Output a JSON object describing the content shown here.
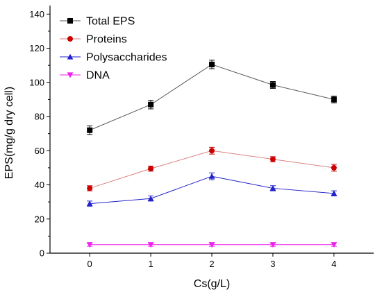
{
  "chart_data": {
    "type": "line",
    "xlabel": "Cs(g/L)",
    "ylabel": "EPS(mg/g dry cell)",
    "x": [
      0,
      1,
      2,
      3,
      4
    ],
    "xlim": [
      -0.65,
      4.65
    ],
    "ylim": [
      0,
      145
    ],
    "xticks": [
      "0",
      "1",
      "2",
      "3",
      "4"
    ],
    "yticks": [
      "0",
      "20",
      "40",
      "60",
      "80",
      "100",
      "120",
      "140"
    ],
    "grid": false,
    "legend_position": "top-left",
    "series": [
      {
        "name": "Total EPS",
        "color": "#000000",
        "line_color": "#5a5a5a",
        "marker": "square",
        "values": [
          72,
          87,
          110.5,
          98.5,
          90
        ],
        "errors": [
          2.5,
          2.5,
          2.5,
          2,
          2
        ]
      },
      {
        "name": "Proteins",
        "color": "#cc0000",
        "line_color": "#d88080",
        "marker": "circle",
        "values": [
          38,
          49.5,
          60,
          55,
          50
        ],
        "errors": [
          1.5,
          1.5,
          2,
          1.5,
          2
        ]
      },
      {
        "name": "Polysaccharides",
        "color": "#2222cc",
        "line_color": "#2222cc",
        "marker": "triangle-up",
        "values": [
          29,
          32,
          45,
          38,
          35
        ],
        "errors": [
          1.5,
          1.5,
          2,
          1.5,
          1.5
        ]
      },
      {
        "name": "DNA",
        "color": "#ee22ee",
        "line_color": "#ee22ee",
        "marker": "triangle-down",
        "values": [
          5,
          5,
          5,
          5,
          5
        ],
        "errors": [
          1,
          1,
          1,
          1,
          1
        ]
      }
    ]
  }
}
